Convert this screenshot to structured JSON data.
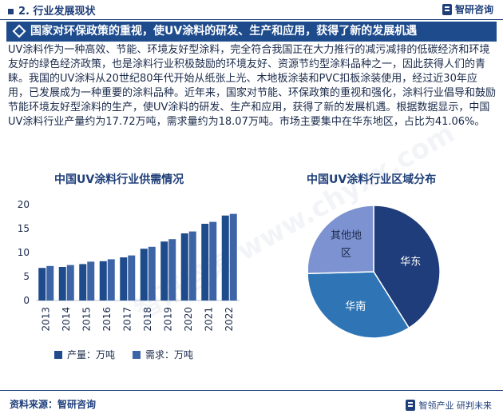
{
  "section_title": "2. 行业发展现状",
  "logo_text": "智研咨询",
  "headline": "国家对环保政策的重视，使UV涂料的研发、生产和应用，获得了新的发展机遇",
  "paragraph": "UV涂料作为一种高效、节能、环境友好型涂料，完全符合我国正在大力推行的减污减排的低碳经济和环境友好的绿色经济政策，也是涂料行业积极鼓励的环境友好、资源节约型涂料品种之一，因此获得人们的青睐。我国的UV涂料从20世纪80年代开始从纸张上光、木地板涂装和PVC扣板涂装使用，经过近30年应用，已发展成为一种重要的涂料品种。近年来，国家对节能、环保政策的重视和强化，涂料行业倡导和鼓励节能环境友好型涂料的生产，使UV涂料的研发、生产和应用，获得了新的发展机遇。根据数据显示，中国UV涂料行业产量约为17.72万吨，需求量约为18.07万吨。市场主要集中在华东地区，占比为41.06%。",
  "watermark": "智研咨询 www.chyxx.com",
  "footer": {
    "source": "资料来源：智研咨询",
    "brand": "智领产业  研判未来"
  },
  "colors": {
    "navy": "#1e4b8c",
    "blue": "#3d64a6",
    "pie_east": "#1f3d7a",
    "pie_south": "#2f75b5",
    "pie_other": "#7d92d0"
  },
  "chart_data": [
    {
      "type": "bar",
      "title": "中国UV涂料行业供需情况",
      "categories": [
        "2013",
        "2014",
        "2015",
        "2016",
        "2017",
        "2018",
        "2019",
        "2020",
        "2021",
        "2022"
      ],
      "series": [
        {
          "name": "产量：万吨",
          "values": [
            6.8,
            7.0,
            7.6,
            8.2,
            9.0,
            10.8,
            12.3,
            14.0,
            16.0,
            17.72
          ]
        },
        {
          "name": "需求：万吨",
          "values": [
            7.2,
            7.4,
            8.1,
            8.6,
            9.4,
            11.2,
            12.8,
            14.4,
            16.4,
            18.07
          ]
        }
      ],
      "yticks": [
        0,
        5,
        10,
        15,
        20
      ],
      "ylim": [
        0,
        20
      ],
      "grid": false,
      "legend": "bottom"
    },
    {
      "type": "pie",
      "title": "中国UV涂料行业区域分布",
      "slices": [
        {
          "label": "华东",
          "value": 41.06
        },
        {
          "label": "华南",
          "value": 33.5
        },
        {
          "label": "其他地区",
          "value": 25.44
        }
      ]
    }
  ]
}
